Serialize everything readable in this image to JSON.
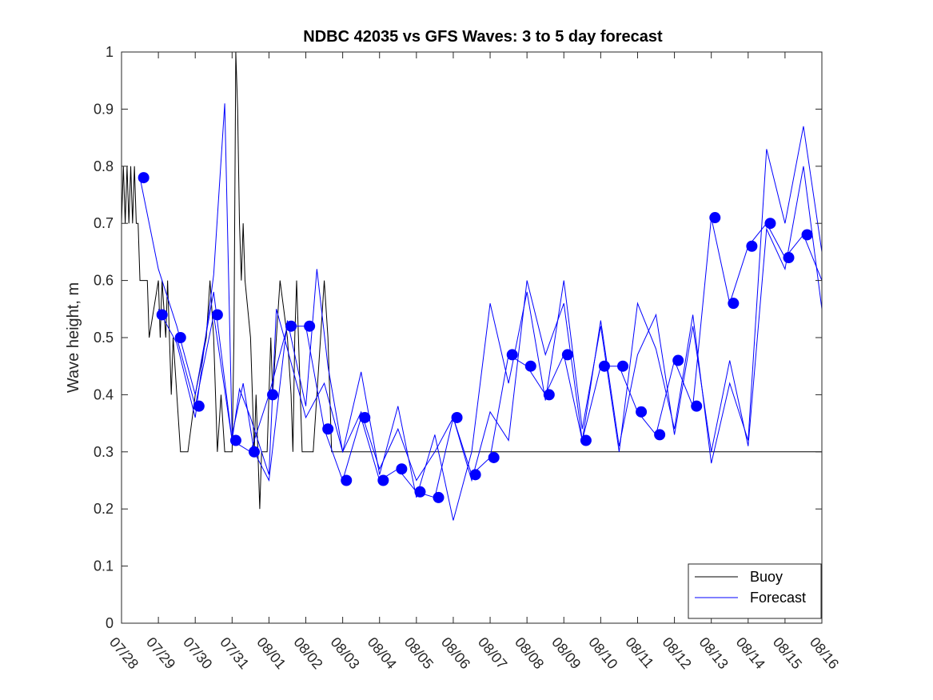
{
  "chart_data": {
    "type": "line",
    "title": "NDBC 42035 vs GFS Waves: 3 to 5 day forecast",
    "xlabel": "",
    "ylabel": "Wave height, m",
    "xlim": [
      0,
      19
    ],
    "ylim": [
      0,
      1
    ],
    "yticks": [
      0,
      0.1,
      0.2,
      0.3,
      0.4,
      0.5,
      0.6,
      0.7,
      0.8,
      0.9,
      1
    ],
    "ytick_labels": [
      "0",
      "0.1",
      "0.2",
      "0.3",
      "0.4",
      "0.5",
      "0.6",
      "0.7",
      "0.8",
      "0.9",
      "1"
    ],
    "xtick_labels": [
      "07/28",
      "07/29",
      "07/30",
      "07/31",
      "08/01",
      "08/02",
      "08/03",
      "08/04",
      "08/05",
      "08/06",
      "08/07",
      "08/08",
      "08/09",
      "08/10",
      "08/11",
      "08/12",
      "08/13",
      "08/14",
      "08/15",
      "08/16"
    ],
    "legend": {
      "placement": "bottom-right",
      "entries": [
        "Buoy",
        "Forecast"
      ]
    },
    "colors": {
      "buoy": "#000000",
      "forecast": "#0000ff",
      "markers": "#0000ff"
    },
    "series": [
      {
        "name": "Buoy",
        "x": [
          0,
          0.05,
          0.1,
          0.15,
          0.2,
          0.25,
          0.3,
          0.35,
          0.4,
          0.45,
          0.5,
          0.6,
          0.65,
          0.7,
          0.75,
          1.0,
          1.05,
          1.1,
          1.2,
          1.25,
          1.3,
          1.35,
          1.4,
          1.5,
          1.6,
          1.65,
          1.7,
          1.75,
          1.8,
          2.0,
          2.3,
          2.4,
          2.5,
          2.6,
          2.7,
          2.8,
          2.9,
          3.0,
          3.05,
          3.1,
          3.15,
          3.2,
          3.25,
          3.3,
          3.35,
          3.5,
          3.6,
          3.65,
          3.7,
          3.75,
          3.8,
          3.95,
          4.0,
          4.05,
          4.1,
          4.2,
          4.3,
          4.5,
          4.6,
          4.65,
          4.7,
          4.75,
          4.9,
          5.0,
          5.2,
          5.3,
          5.5,
          5.6,
          5.7,
          5.8,
          5.9,
          6.0,
          6.1,
          6.2,
          6.5,
          6.6,
          6.7,
          6.8,
          7.0,
          7.1,
          7.3,
          7.4,
          7.5,
          7.6,
          7.7,
          7.8,
          7.9,
          8.0,
          8.1,
          8.2,
          8.3,
          8.5,
          8.6,
          8.7,
          8.75,
          8.8,
          8.9,
          9.0,
          9.1,
          9.2,
          9.3,
          9.5,
          9.6,
          9.7,
          9.8,
          9.9,
          10.0,
          10.1,
          10.2,
          10.3,
          10.4,
          10.5,
          10.6,
          10.7,
          10.8,
          10.9,
          11.0,
          11.1,
          11.2,
          11.3,
          11.4,
          11.5,
          11.6,
          11.7,
          11.8,
          12.0,
          12.2,
          12.3,
          12.5,
          12.6,
          12.8,
          13.0,
          13.1,
          13.2,
          13.3,
          13.4,
          13.5,
          13.6,
          13.7,
          13.8,
          14.0,
          14.2,
          14.3,
          14.4,
          14.5,
          14.6,
          14.7,
          14.8,
          14.9,
          15.0,
          15.2,
          15.3,
          15.4,
          15.5,
          15.6,
          15.7,
          15.8,
          15.9,
          16.0,
          16.1,
          16.2,
          16.4,
          16.5,
          16.7,
          16.8,
          16.9,
          17.0,
          17.1,
          17.2,
          17.3,
          17.4,
          17.5,
          17.6,
          17.7,
          17.8,
          17.9,
          18.0,
          18.1,
          18.2,
          18.3,
          18.4,
          18.5,
          18.6,
          18.7,
          18.8,
          19.0
        ],
        "y": [
          0.7,
          0.8,
          0.7,
          0.8,
          0.7,
          0.8,
          0.7,
          0.8,
          0.7,
          0.7,
          0.6,
          0.6,
          0.6,
          0.6,
          0.5,
          0.6,
          0.5,
          0.6,
          0.5,
          0.6,
          0.5,
          0.4,
          0.5,
          0.4,
          0.3,
          0.3,
          0.3,
          0.3,
          0.3,
          0.4,
          0.5,
          0.6,
          0.5,
          0.3,
          0.4,
          0.3,
          0.3,
          0.3,
          0.5,
          1.0,
          0.9,
          0.7,
          0.6,
          0.7,
          0.6,
          0.5,
          0.3,
          0.4,
          0.3,
          0.2,
          0.3,
          0.3,
          0.4,
          0.5,
          0.4,
          0.5,
          0.6,
          0.5,
          0.4,
          0.3,
          0.5,
          0.6,
          0.3,
          0.3,
          0.3,
          0.4,
          0.6,
          0.5,
          0.3,
          0.3,
          0.3,
          0.3,
          0.3,
          0.3,
          0.3,
          0.3,
          0.3,
          0.3,
          0.3,
          0.3,
          0.3,
          0.3,
          0.3,
          0.3,
          0.3,
          0.3,
          0.3,
          0.3,
          0.3,
          0.3,
          0.3,
          0.3,
          0.3,
          0.3,
          0.3,
          0.3,
          0.3,
          0.3,
          0.3,
          0.3,
          0.3,
          0.3,
          0.3,
          0.3,
          0.3,
          0.3,
          0.3,
          0.3,
          0.3,
          0.3,
          0.3,
          0.3,
          0.3,
          0.3,
          0.3,
          0.3,
          0.3,
          0.3,
          0.3,
          0.3,
          0.3,
          0.3,
          0.3,
          0.3,
          0.3,
          0.3,
          0.3,
          0.3,
          0.3,
          0.3,
          0.3,
          0.3,
          0.3,
          0.3,
          0.3,
          0.3,
          0.3,
          0.3,
          0.3,
          0.3,
          0.3,
          0.3,
          0.3,
          0.3,
          0.3,
          0.3,
          0.3,
          0.3,
          0.3,
          0.3,
          0.3,
          0.3,
          0.3,
          0.3,
          0.3,
          0.3,
          0.3,
          0.3,
          0.3,
          0.3,
          0.3,
          0.3,
          0.3,
          0.3,
          0.3,
          0.3,
          0.3,
          0.3,
          0.3,
          0.3,
          0.3,
          0.3,
          0.3,
          0.3,
          0.3,
          0.3,
          0.3,
          0.3,
          0.3,
          0.3,
          0.3,
          0.3,
          0.3,
          0.3,
          0.3,
          0.3
        ]
      },
      {
        "name": "Forecast",
        "lines": [
          {
            "x": [
              0.5,
              1.0,
              1.5,
              2.0,
              2.5,
              3.0,
              3.2,
              3.5,
              4.0,
              4.2,
              4.5,
              5.0,
              5.5,
              6.0,
              6.5,
              7.0,
              7.5,
              8.0,
              8.5,
              9.0,
              9.5,
              10.0,
              10.5,
              11.0,
              11.5,
              12.0,
              12.5,
              13.0,
              13.5,
              14.0,
              14.5,
              15.0,
              15.5,
              16.0,
              16.5,
              17.0,
              17.5,
              18.0,
              18.5,
              19.0
            ],
            "y": [
              0.78,
              0.62,
              0.52,
              0.4,
              0.58,
              0.32,
              0.41,
              0.36,
              0.26,
              0.55,
              0.48,
              0.36,
              0.42,
              0.3,
              0.37,
              0.27,
              0.34,
              0.25,
              0.3,
              0.36,
              0.25,
              0.37,
              0.32,
              0.6,
              0.47,
              0.56,
              0.32,
              0.53,
              0.31,
              0.47,
              0.54,
              0.33,
              0.52,
              0.3,
              0.46,
              0.31,
              0.69,
              0.62,
              0.8,
              0.55
            ]
          },
          {
            "x": [
              1.0,
              1.5,
              2.0,
              2.5,
              2.8,
              3.0,
              3.3,
              3.6,
              4.0,
              4.5,
              5.0,
              5.3,
              5.6,
              6.0,
              6.5,
              7.0,
              7.5,
              8.0,
              8.5,
              9.0,
              9.5,
              10.0,
              10.5,
              11.0,
              11.5,
              12.0,
              12.5,
              13.0,
              13.5,
              14.0,
              14.5,
              15.0,
              15.5,
              16.0,
              16.5,
              17.0,
              17.5,
              18.0,
              18.5,
              19.0
            ],
            "y": [
              0.55,
              0.49,
              0.36,
              0.61,
              0.91,
              0.33,
              0.42,
              0.3,
              0.25,
              0.53,
              0.38,
              0.62,
              0.45,
              0.3,
              0.44,
              0.26,
              0.38,
              0.22,
              0.33,
              0.18,
              0.3,
              0.56,
              0.42,
              0.58,
              0.39,
              0.6,
              0.34,
              0.52,
              0.3,
              0.56,
              0.48,
              0.34,
              0.54,
              0.28,
              0.42,
              0.32,
              0.83,
              0.7,
              0.87,
              0.65
            ]
          },
          {
            "x": [
              1.5,
              2.0,
              2.5,
              3.0,
              3.5,
              4.0,
              4.5,
              5.0,
              5.5,
              6.0,
              6.5,
              7.0,
              7.5,
              8.0,
              8.5,
              9.0,
              9.5,
              10.0,
              10.5,
              11.0,
              11.5,
              12.0,
              12.5,
              13.0,
              13.5,
              14.0,
              14.5,
              15.0,
              15.5,
              16.0,
              16.5,
              17.0,
              17.5,
              18.0,
              18.5,
              19.0
            ],
            "y": [
              0.5,
              0.38,
              0.54,
              0.32,
              0.3,
              0.4,
              0.52,
              0.52,
              0.34,
              0.25,
              0.36,
              0.25,
              0.27,
              0.23,
              0.22,
              0.36,
              0.26,
              0.29,
              0.47,
              0.45,
              0.4,
              0.47,
              0.32,
              0.45,
              0.45,
              0.37,
              0.33,
              0.46,
              0.38,
              0.71,
              0.56,
              0.66,
              0.7,
              0.64,
              0.68,
              0.6
            ]
          }
        ]
      },
      {
        "name": "Forecast markers",
        "x": [
          0.6,
          1.1,
          1.6,
          2.1,
          2.6,
          3.1,
          3.6,
          4.1,
          4.6,
          5.1,
          5.6,
          6.1,
          6.6,
          7.1,
          7.6,
          8.1,
          8.6,
          9.1,
          9.6,
          10.1,
          10.6,
          11.1,
          11.6,
          12.1,
          12.6,
          13.1,
          13.6,
          14.1,
          14.6,
          15.1,
          15.6,
          16.1,
          16.6,
          17.1,
          17.6,
          18.1,
          18.6
        ],
        "y": [
          0.78,
          0.54,
          0.5,
          0.38,
          0.54,
          0.32,
          0.3,
          0.4,
          0.52,
          0.52,
          0.34,
          0.25,
          0.36,
          0.25,
          0.27,
          0.23,
          0.22,
          0.36,
          0.26,
          0.29,
          0.47,
          0.45,
          0.4,
          0.47,
          0.32,
          0.45,
          0.45,
          0.37,
          0.33,
          0.46,
          0.38,
          0.71,
          0.56,
          0.66,
          0.7,
          0.64,
          0.68
        ]
      }
    ]
  }
}
